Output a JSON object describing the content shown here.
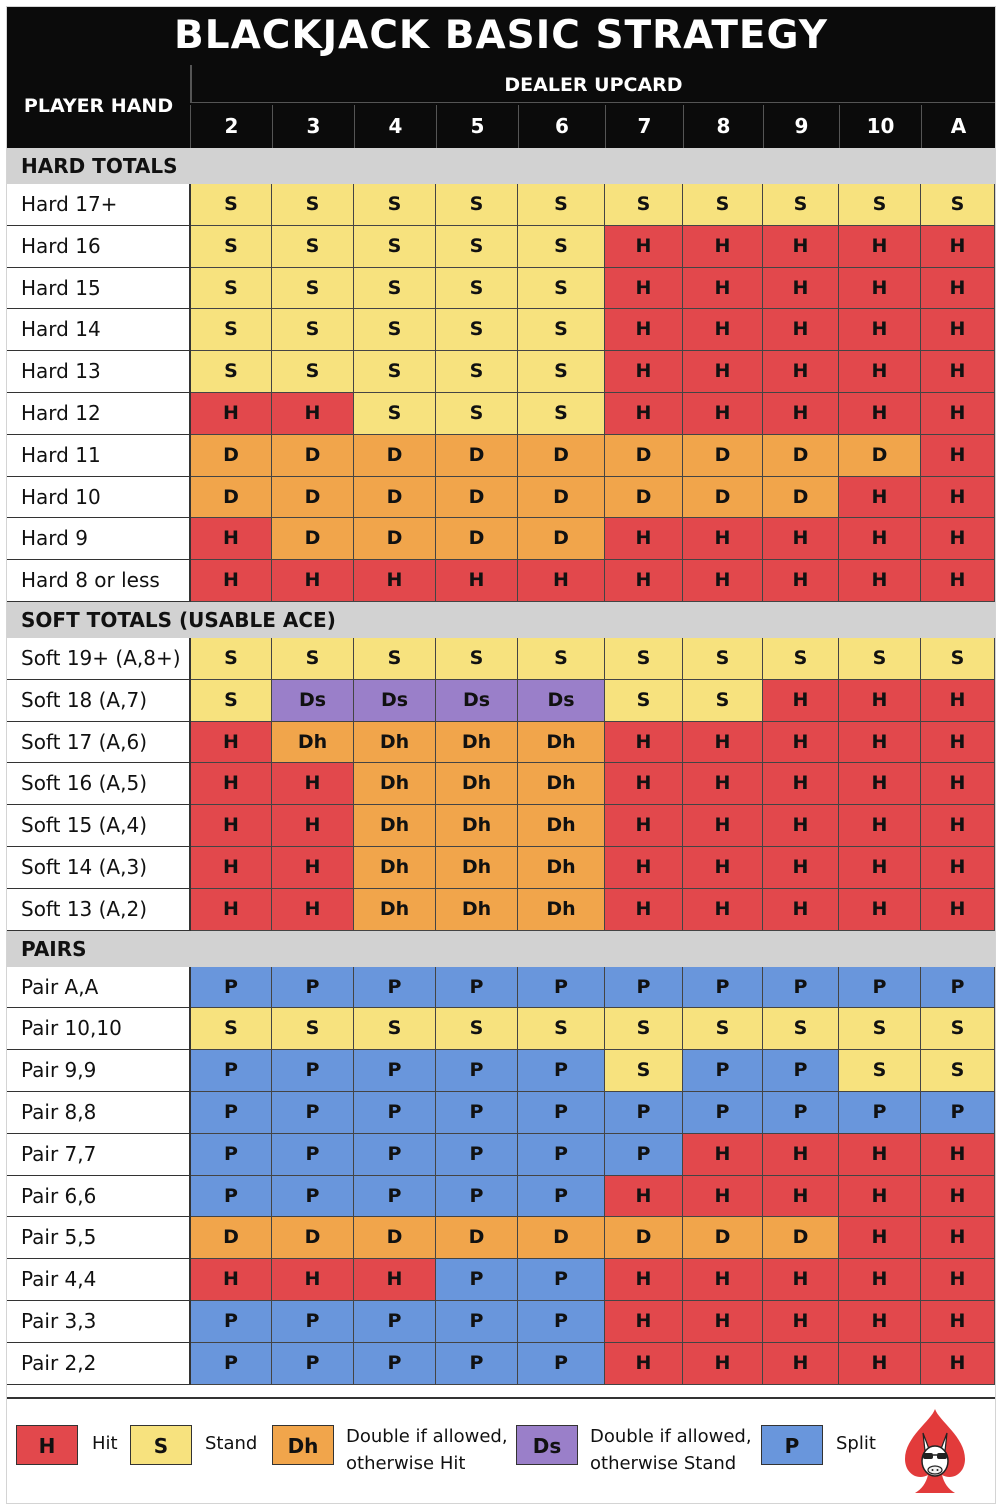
{
  "title": "BLACKJACK BASIC STRATEGY",
  "header": {
    "player_hand": "PLAYER HAND",
    "dealer_upcard": "DEALER UPCARD",
    "upcards": [
      "2",
      "3",
      "4",
      "5",
      "6",
      "7",
      "8",
      "9",
      "10",
      "A"
    ]
  },
  "sections": [
    {
      "title": "HARD TOTALS",
      "rows": [
        {
          "label": "Hard 17+",
          "actions": [
            "S",
            "S",
            "S",
            "S",
            "S",
            "S",
            "S",
            "S",
            "S",
            "S"
          ]
        },
        {
          "label": "Hard 16",
          "actions": [
            "S",
            "S",
            "S",
            "S",
            "S",
            "H",
            "H",
            "H",
            "H",
            "H"
          ]
        },
        {
          "label": "Hard 15",
          "actions": [
            "S",
            "S",
            "S",
            "S",
            "S",
            "H",
            "H",
            "H",
            "H",
            "H"
          ]
        },
        {
          "label": "Hard 14",
          "actions": [
            "S",
            "S",
            "S",
            "S",
            "S",
            "H",
            "H",
            "H",
            "H",
            "H"
          ]
        },
        {
          "label": "Hard 13",
          "actions": [
            "S",
            "S",
            "S",
            "S",
            "S",
            "H",
            "H",
            "H",
            "H",
            "H"
          ]
        },
        {
          "label": "Hard 12",
          "actions": [
            "H",
            "H",
            "S",
            "S",
            "S",
            "H",
            "H",
            "H",
            "H",
            "H"
          ]
        },
        {
          "label": "Hard 11",
          "actions": [
            "D",
            "D",
            "D",
            "D",
            "D",
            "D",
            "D",
            "D",
            "D",
            "H"
          ]
        },
        {
          "label": "Hard 10",
          "actions": [
            "D",
            "D",
            "D",
            "D",
            "D",
            "D",
            "D",
            "D",
            "H",
            "H"
          ]
        },
        {
          "label": "Hard 9",
          "actions": [
            "H",
            "D",
            "D",
            "D",
            "D",
            "H",
            "H",
            "H",
            "H",
            "H"
          ]
        },
        {
          "label": "Hard 8 or less",
          "actions": [
            "H",
            "H",
            "H",
            "H",
            "H",
            "H",
            "H",
            "H",
            "H",
            "H"
          ]
        }
      ]
    },
    {
      "title": "SOFT TOTALS (USABLE ACE)",
      "rows": [
        {
          "label": "Soft 19+ (A,8+)",
          "actions": [
            "S",
            "S",
            "S",
            "S",
            "S",
            "S",
            "S",
            "S",
            "S",
            "S"
          ]
        },
        {
          "label": "Soft 18 (A,7)",
          "actions": [
            "S",
            "Ds",
            "Ds",
            "Ds",
            "Ds",
            "S",
            "S",
            "H",
            "H",
            "H"
          ]
        },
        {
          "label": "Soft 17 (A,6)",
          "actions": [
            "H",
            "Dh",
            "Dh",
            "Dh",
            "Dh",
            "H",
            "H",
            "H",
            "H",
            "H"
          ]
        },
        {
          "label": "Soft 16 (A,5)",
          "actions": [
            "H",
            "H",
            "Dh",
            "Dh",
            "Dh",
            "H",
            "H",
            "H",
            "H",
            "H"
          ]
        },
        {
          "label": "Soft 15 (A,4)",
          "actions": [
            "H",
            "H",
            "Dh",
            "Dh",
            "Dh",
            "H",
            "H",
            "H",
            "H",
            "H"
          ]
        },
        {
          "label": "Soft 14 (A,3)",
          "actions": [
            "H",
            "H",
            "Dh",
            "Dh",
            "Dh",
            "H",
            "H",
            "H",
            "H",
            "H"
          ]
        },
        {
          "label": "Soft 13 (A,2)",
          "actions": [
            "H",
            "H",
            "Dh",
            "Dh",
            "Dh",
            "H",
            "H",
            "H",
            "H",
            "H"
          ]
        }
      ]
    },
    {
      "title": "PAIRS",
      "rows": [
        {
          "label": "Pair A,A",
          "actions": [
            "P",
            "P",
            "P",
            "P",
            "P",
            "P",
            "P",
            "P",
            "P",
            "P"
          ]
        },
        {
          "label": "Pair 10,10",
          "actions": [
            "S",
            "S",
            "S",
            "S",
            "S",
            "S",
            "S",
            "S",
            "S",
            "S"
          ]
        },
        {
          "label": "Pair 9,9",
          "actions": [
            "P",
            "P",
            "P",
            "P",
            "P",
            "S",
            "P",
            "P",
            "S",
            "S"
          ]
        },
        {
          "label": "Pair 8,8",
          "actions": [
            "P",
            "P",
            "P",
            "P",
            "P",
            "P",
            "P",
            "P",
            "P",
            "P"
          ]
        },
        {
          "label": "Pair 7,7",
          "actions": [
            "P",
            "P",
            "P",
            "P",
            "P",
            "P",
            "H",
            "H",
            "H",
            "H"
          ]
        },
        {
          "label": "Pair 6,6",
          "actions": [
            "P",
            "P",
            "P",
            "P",
            "P",
            "H",
            "H",
            "H",
            "H",
            "H"
          ]
        },
        {
          "label": "Pair 5,5",
          "actions": [
            "D",
            "D",
            "D",
            "D",
            "D",
            "D",
            "D",
            "D",
            "H",
            "H"
          ]
        },
        {
          "label": "Pair 4,4",
          "actions": [
            "H",
            "H",
            "H",
            "P",
            "P",
            "H",
            "H",
            "H",
            "H",
            "H"
          ]
        },
        {
          "label": "Pair 3,3",
          "actions": [
            "P",
            "P",
            "P",
            "P",
            "P",
            "H",
            "H",
            "H",
            "H",
            "H"
          ]
        },
        {
          "label": "Pair 2,2",
          "actions": [
            "P",
            "P",
            "P",
            "P",
            "P",
            "H",
            "H",
            "H",
            "H",
            "H"
          ]
        }
      ]
    }
  ],
  "legend": {
    "hit_code": "H",
    "hit_text": "Hit",
    "stand_code": "S",
    "stand_text": "Stand",
    "dh_code": "Dh",
    "dh_text_1": "Double if allowed,",
    "dh_text_2": "otherwise Hit",
    "ds_code": "Ds",
    "ds_text_1": "Double if allowed,",
    "ds_text_2": "otherwise Stand",
    "split_code": "P",
    "split_text": "Split"
  },
  "logo_icon": "spade-donkey-logo-icon",
  "colors": {
    "hit": "#e2484c",
    "stand": "#f7e27e",
    "double": "#f1a54b",
    "double_stand": "#9a7fc9",
    "split": "#6996dc",
    "header": "#0b0b0b",
    "section": "#d2d2d2"
  }
}
